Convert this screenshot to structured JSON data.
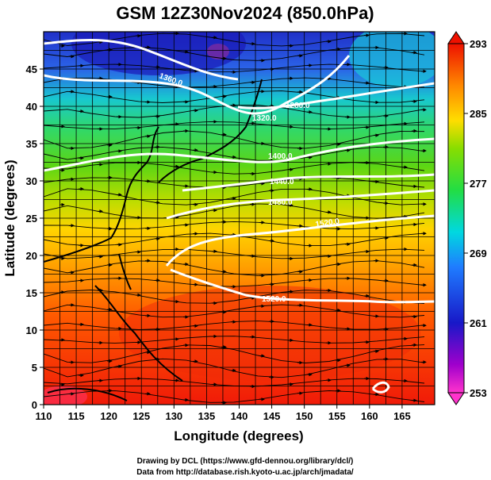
{
  "title": "GSM 12Z30Nov2024 (850.0hPa)",
  "xlabel": "Longitude (degrees)",
  "ylabel": "Latitude  (degrees)",
  "credits": [
    "Drawing by DCL (https://www.gfd-dennou.org/library/dcl/)",
    "Data from http://database.rish.kyoto-u.ac.jp/arch/jmadata/"
  ],
  "x_ticks": [
    "110",
    "115",
    "120",
    "125",
    "130",
    "135",
    "140",
    "145",
    "150",
    "155",
    "160",
    "165"
  ],
  "y_ticks": [
    "0",
    "5",
    "10",
    "15",
    "20",
    "25",
    "30",
    "35",
    "40",
    "45"
  ],
  "colorbar_ticks": [
    "293",
    "285",
    "277",
    "269",
    "261",
    "253"
  ],
  "contour_labels": [
    "1360.0",
    "1320.0",
    "1280.0",
    "1400.0",
    "1440.0",
    "1480.0",
    "1520.0",
    "1520.0"
  ],
  "map": {
    "lon_range": [
      110,
      170
    ],
    "lat_range": [
      0,
      50
    ],
    "fill_variable_range_K": [
      253,
      293
    ],
    "fill_colors": [
      "#ff33cc",
      "#7a00cc",
      "#1a1acc",
      "#1a66ff",
      "#00c8ff",
      "#22dd66",
      "#44dd00",
      "#aadd00",
      "#ffdd00",
      "#ff9900",
      "#ff4400",
      "#ee1100"
    ]
  }
}
